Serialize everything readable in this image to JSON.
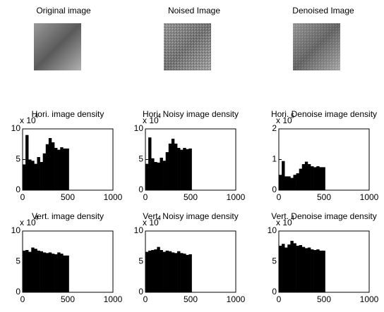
{
  "images": [
    {
      "title": "Original image"
    },
    {
      "title": "Noised Image"
    },
    {
      "title": "Denoised Image"
    }
  ],
  "chart_data": [
    {
      "type": "area",
      "title": "Hori. image density",
      "y_multiplier": {
        "base": "x 10",
        "exponent": "4"
      },
      "color": "#000000",
      "x": [
        16,
        48,
        80,
        112,
        144,
        176,
        208,
        240,
        272,
        304,
        336,
        368,
        400,
        432,
        464,
        496
      ],
      "values": [
        4.2,
        9.0,
        5.0,
        4.8,
        4.3,
        5.4,
        4.6,
        6.0,
        7.5,
        8.5,
        7.8,
        6.9,
        6.6,
        7.0,
        6.8,
        6.8
      ],
      "xlim": [
        0,
        1000
      ],
      "xticks": [
        0,
        500,
        1000
      ],
      "ylim": [
        0,
        10
      ],
      "yticks": [
        0,
        5,
        10
      ]
    },
    {
      "type": "area",
      "title": "Hori. Noisy image density",
      "y_multiplier": {
        "base": "x 10",
        "exponent": "4"
      },
      "color": "#000000",
      "x": [
        16,
        48,
        80,
        112,
        144,
        176,
        208,
        240,
        272,
        304,
        336,
        368,
        400,
        432,
        464,
        496
      ],
      "values": [
        4.3,
        8.6,
        5.2,
        4.6,
        4.5,
        5.3,
        4.8,
        6.2,
        7.6,
        8.4,
        7.6,
        6.9,
        6.6,
        6.9,
        6.7,
        6.8
      ],
      "xlim": [
        0,
        1000
      ],
      "xticks": [
        0,
        500,
        1000
      ],
      "ylim": [
        0,
        10
      ],
      "yticks": [
        0,
        5,
        10
      ]
    },
    {
      "type": "area",
      "title": "Hori. Denoise image density",
      "y_multiplier": {
        "base": "x 10",
        "exponent": "5"
      },
      "color": "#000000",
      "x": [
        16,
        48,
        80,
        112,
        144,
        176,
        208,
        240,
        272,
        304,
        336,
        368,
        400,
        432,
        464,
        496
      ],
      "values": [
        0.5,
        0.95,
        0.45,
        0.45,
        0.4,
        0.5,
        0.55,
        0.7,
        0.85,
        0.93,
        0.85,
        0.78,
        0.75,
        0.78,
        0.75,
        0.75
      ],
      "xlim": [
        0,
        1000
      ],
      "xticks": [
        0,
        500,
        1000
      ],
      "ylim": [
        0,
        2
      ],
      "yticks": [
        0,
        1,
        2
      ]
    },
    {
      "type": "area",
      "title": "Vert. image density",
      "y_multiplier": {
        "base": "x 10",
        "exponent": "4"
      },
      "color": "#000000",
      "x": [
        16,
        48,
        80,
        112,
        144,
        176,
        208,
        240,
        272,
        304,
        336,
        368,
        400,
        432,
        464,
        496
      ],
      "values": [
        6.8,
        6.9,
        6.6,
        7.3,
        7.1,
        6.8,
        6.7,
        6.5,
        6.4,
        6.5,
        6.3,
        6.2,
        6.5,
        6.3,
        6.0,
        6.0
      ],
      "xlim": [
        0,
        1000
      ],
      "xticks": [
        0,
        500,
        1000
      ],
      "ylim": [
        0,
        10
      ],
      "yticks": [
        0,
        5,
        10
      ]
    },
    {
      "type": "area",
      "title": "Vert. Noisy image density",
      "y_multiplier": {
        "base": "x 10",
        "exponent": "4"
      },
      "color": "#000000",
      "x": [
        16,
        48,
        80,
        112,
        144,
        176,
        208,
        240,
        272,
        304,
        336,
        368,
        400,
        432,
        464,
        496
      ],
      "values": [
        6.6,
        6.8,
        6.9,
        7.0,
        7.4,
        6.9,
        6.6,
        6.8,
        6.7,
        6.5,
        6.4,
        6.7,
        6.4,
        6.3,
        6.1,
        6.2
      ],
      "xlim": [
        0,
        1000
      ],
      "xticks": [
        0,
        500,
        1000
      ],
      "ylim": [
        0,
        10
      ],
      "yticks": [
        0,
        5,
        10
      ]
    },
    {
      "type": "area",
      "title": "Vert. Denoise image density",
      "y_multiplier": {
        "base": "x 10",
        "exponent": "4"
      },
      "color": "#000000",
      "x": [
        16,
        48,
        80,
        112,
        144,
        176,
        208,
        240,
        272,
        304,
        336,
        368,
        400,
        432,
        464,
        496
      ],
      "values": [
        7.6,
        7.9,
        7.3,
        7.8,
        8.4,
        8.0,
        7.6,
        7.7,
        7.4,
        7.2,
        7.3,
        7.0,
        6.9,
        7.0,
        6.8,
        6.8
      ],
      "xlim": [
        0,
        1000
      ],
      "xticks": [
        0,
        500,
        1000
      ],
      "ylim": [
        0,
        10
      ],
      "yticks": [
        0,
        5,
        10
      ]
    }
  ]
}
